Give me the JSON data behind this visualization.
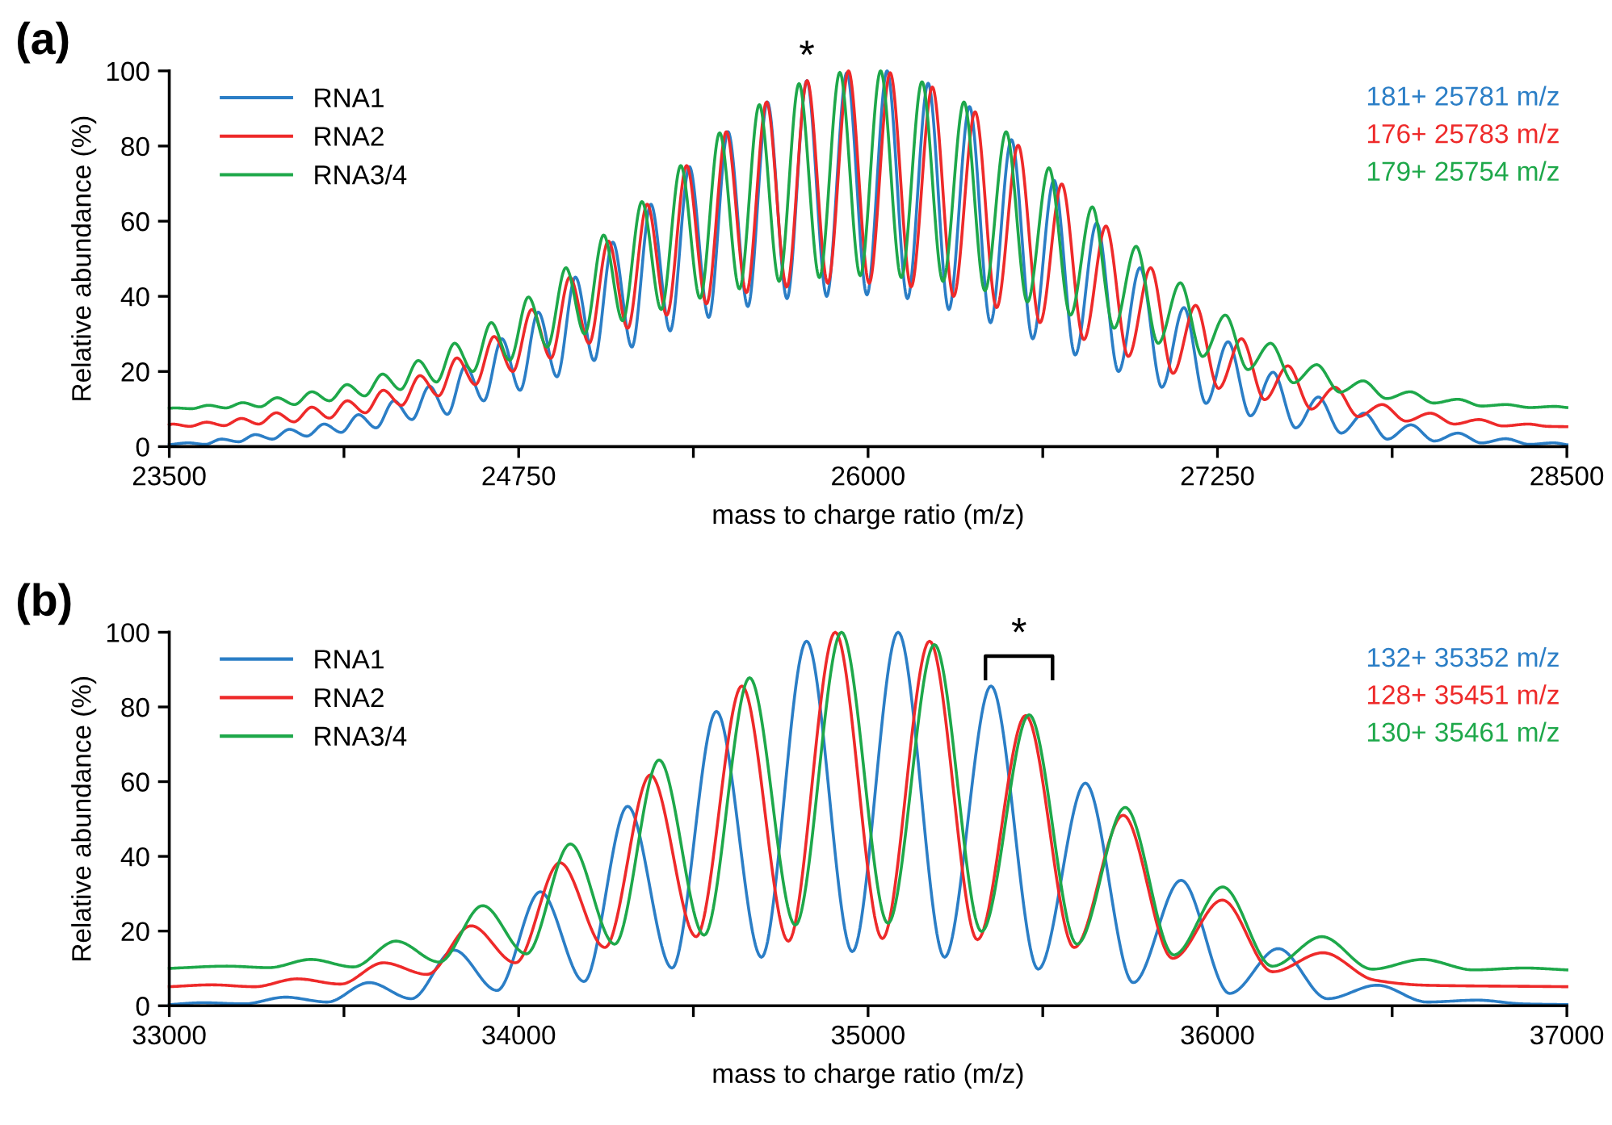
{
  "chart_data": [
    {
      "type": "line",
      "title": "(a)",
      "xlabel": "mass to charge ratio (m/z)",
      "ylabel": "Relative abundance (%)",
      "xlim": [
        23500,
        28500
      ],
      "xticks": [
        23500,
        {
          "value": 24125,
          "label": null
        },
        24750,
        {
          "value": 25375,
          "label": null
        },
        26000,
        {
          "value": 26625,
          "label": null
        },
        27250,
        {
          "value": 27875,
          "label": null
        },
        28500
      ],
      "ylim": [
        0,
        100
      ],
      "yticks": [
        0,
        20,
        40,
        60,
        80,
        100
      ],
      "grid": false,
      "legend": "top left",
      "marker": "none",
      "line_style": "solid",
      "series": [
        {
          "name": "RNA1",
          "color": "#2b7ec6",
          "x": [
            23500,
            23568,
            23628,
            23687,
            23748,
            23808,
            23869,
            23930,
            23992,
            24054,
            24115,
            24177,
            24240,
            24304,
            24368,
            24431,
            24495,
            24560,
            24625,
            24690,
            24755,
            24820,
            24887,
            24953,
            25020,
            25087,
            25155,
            25223,
            25292,
            25361,
            25430,
            25499,
            25570,
            25640,
            25710,
            25781,
            25852,
            25924,
            25996,
            26068,
            26141,
            26215,
            26289,
            26363,
            26438,
            26513,
            26589,
            26665,
            26741,
            26818,
            26896,
            26973,
            27051,
            27130,
            27209,
            27288,
            27368,
            27449,
            27530,
            27611,
            27693,
            27775,
            27858,
            27942,
            28026,
            28110,
            28195,
            28281,
            28367,
            28453,
            28500
          ],
          "values": [
            0.5,
            1.0,
            0.6,
            2.0,
            1.3,
            3.2,
            2.0,
            4.6,
            2.8,
            6.0,
            3.8,
            8.5,
            5.0,
            12.2,
            7.2,
            16.1,
            8.6,
            21.5,
            12.2,
            28.7,
            15.0,
            35.8,
            18.6,
            45.1,
            22.9,
            54.4,
            26.5,
            64.5,
            30.8,
            74.5,
            34.4,
            83.8,
            37.3,
            91.7,
            39.4,
            97.4,
            40.0,
            99.5,
            40.4,
            100,
            39.4,
            96.7,
            36.5,
            90.5,
            33.0,
            81.7,
            28.7,
            70.9,
            24.4,
            59.5,
            20.0,
            47.6,
            15.8,
            37.0,
            11.5,
            27.9,
            8.2,
            19.8,
            5.0,
            13.2,
            3.6,
            8.9,
            2.0,
            5.8,
            1.5,
            3.6,
            1.0,
            2.1,
            0.6,
            1.0,
            0.5
          ]
        },
        {
          "name": "RNA2",
          "color": "#ee2a2a",
          "x": [
            23500,
            23512,
            23573,
            23634,
            23696,
            23758,
            23820,
            23883,
            23946,
            24010,
            24073,
            24137,
            24201,
            24266,
            24331,
            24397,
            24463,
            24529,
            24595,
            24662,
            24729,
            24797,
            24865,
            24933,
            25002,
            25071,
            25140,
            25210,
            25280,
            25351,
            25422,
            25493,
            25565,
            25637,
            25709,
            25782,
            25856,
            25930,
            26004,
            26079,
            26154,
            26230,
            26306,
            26383,
            26460,
            26537,
            26615,
            26693,
            26772,
            26851,
            26931,
            27011,
            27091,
            27172,
            27254,
            27336,
            27419,
            27502,
            27586,
            27670,
            27754,
            27839,
            27925,
            28011,
            28098,
            28185,
            28273,
            28361,
            28430,
            28500
          ],
          "values": [
            5.8,
            6.0,
            5.4,
            6.5,
            5.6,
            7.5,
            6.0,
            9.0,
            6.6,
            10.5,
            7.6,
            12.2,
            9.0,
            15.0,
            11.0,
            18.9,
            13.5,
            23.6,
            16.5,
            29.3,
            20.0,
            36.5,
            23.5,
            45.1,
            27.5,
            54.7,
            31.5,
            64.5,
            35.0,
            74.8,
            38.0,
            83.8,
            41.0,
            91.7,
            42.5,
            97.4,
            43.5,
            100,
            43.5,
            99.5,
            42.5,
            95.7,
            40.0,
            89.1,
            37.0,
            80.2,
            33.0,
            69.9,
            28.5,
            58.7,
            24.0,
            47.6,
            19.5,
            37.6,
            15.5,
            28.7,
            12.5,
            21.5,
            10.0,
            15.8,
            8.0,
            11.2,
            6.8,
            8.9,
            6.0,
            7.2,
            5.5,
            6.0,
            5.4,
            5.3
          ]
        },
        {
          "name": "RNA3/4",
          "color": "#1ea84a",
          "x": [
            23500,
            23520,
            23580,
            23641,
            23702,
            23763,
            23824,
            23886,
            23948,
            24010,
            24073,
            24136,
            24199,
            24263,
            24327,
            24391,
            24456,
            24521,
            24586,
            24652,
            24718,
            24785,
            24852,
            24919,
            24986,
            25054,
            25122,
            25191,
            25260,
            25330,
            25399,
            25469,
            25540,
            25611,
            25682,
            25753,
            25826,
            25899,
            25972,
            26045,
            26119,
            26193,
            26268,
            26343,
            26418,
            26494,
            26570,
            26647,
            26724,
            26802,
            26880,
            26959,
            27038,
            27117,
            27197,
            27278,
            27359,
            27440,
            27522,
            27605,
            27688,
            27771,
            27855,
            27939,
            28024,
            28110,
            28196,
            28282,
            28369,
            28457,
            28500
          ],
          "values": [
            10.2,
            10.3,
            10.1,
            11.0,
            10.3,
            11.7,
            10.6,
            13.0,
            11.2,
            14.6,
            12.2,
            16.5,
            13.5,
            19.3,
            15.2,
            22.9,
            17.2,
            27.5,
            20.0,
            33.0,
            23.0,
            39.8,
            26.5,
            47.6,
            30.0,
            56.3,
            33.5,
            65.2,
            36.5,
            74.8,
            39.5,
            83.5,
            42.0,
            91.0,
            44.0,
            96.6,
            45.0,
            99.6,
            45.5,
            100,
            45.0,
            97.1,
            44.0,
            91.7,
            41.5,
            83.8,
            38.5,
            74.2,
            35.0,
            63.8,
            31.5,
            53.3,
            27.5,
            43.6,
            24.0,
            35.0,
            20.5,
            27.5,
            17.0,
            21.8,
            14.5,
            17.5,
            12.8,
            14.6,
            11.6,
            12.6,
            10.8,
            11.2,
            10.4,
            10.7,
            10.4
          ]
        }
      ],
      "annotations": [
        "181+ 25781 m/z",
        "176+ 25783 m/z",
        "179+ 25754 m/z",
        {
          "text": "*",
          "x": 25781,
          "y": 97.4
        }
      ]
    },
    {
      "type": "line",
      "title": "(b)",
      "xlabel": "mass to charge ratio (m/z)",
      "ylabel": "Relative abundance (%)",
      "xlim": [
        33000,
        37000
      ],
      "xticks": [
        33000,
        {
          "value": 33500,
          "label": null
        },
        34000,
        {
          "value": 34500,
          "label": null
        },
        35000,
        {
          "value": 35500,
          "label": null
        },
        36000,
        {
          "value": 36500,
          "label": null
        },
        37000
      ],
      "ylim": [
        0,
        100
      ],
      "yticks": [
        0,
        20,
        40,
        60,
        80,
        100
      ],
      "grid": false,
      "legend": "top left",
      "marker": "none",
      "line_style": "solid",
      "series": [
        {
          "name": "RNA1",
          "color": "#2b7ec6",
          "x": [
            33000,
            33096,
            33214,
            33332,
            33452,
            33572,
            33693,
            33815,
            33938,
            34062,
            34187,
            34312,
            34439,
            34566,
            34695,
            34824,
            34955,
            35086,
            35219,
            35352,
            35487,
            35622,
            35759,
            35896,
            36035,
            36174,
            36315,
            36457,
            36600,
            36744,
            36872,
            37000
          ],
          "values": [
            0.3,
            0.8,
            0.5,
            2.3,
            1.0,
            6.2,
            1.9,
            14.9,
            4.1,
            30.5,
            6.5,
            53.4,
            10.1,
            78.8,
            13.0,
            97.6,
            14.5,
            100,
            13.0,
            85.6,
            9.8,
            59.6,
            6.2,
            33.6,
            3.3,
            15.3,
            1.9,
            5.5,
            1.0,
            1.5,
            0.5,
            0.3
          ]
        },
        {
          "name": "RNA2",
          "color": "#ee2a2a",
          "x": [
            33000,
            33122,
            33244,
            33366,
            33490,
            33613,
            33738,
            33864,
            33991,
            34118,
            34247,
            34377,
            34508,
            34639,
            34772,
            34906,
            35041,
            35176,
            35313,
            35451,
            35590,
            35730,
            35872,
            36014,
            36158,
            36302,
            36448,
            36594,
            36743,
            36892,
            37000
          ],
          "values": [
            5.1,
            5.6,
            5.1,
            7.2,
            5.8,
            11.5,
            8.4,
            21.4,
            11.5,
            38.3,
            15.6,
            61.8,
            18.5,
            85.6,
            17.3,
            100,
            18.0,
            97.6,
            17.7,
            77.7,
            15.6,
            51.0,
            12.7,
            28.3,
            9.1,
            14.2,
            6.9,
            5.5,
            5.3,
            5.2,
            5.1
          ]
        },
        {
          "name": "RNA3/4",
          "color": "#1ea84a",
          "x": [
            33000,
            33165,
            33285,
            33405,
            33527,
            33649,
            33773,
            33897,
            34022,
            34148,
            34275,
            34402,
            34531,
            34661,
            34792,
            34924,
            35057,
            35190,
            35325,
            35461,
            35598,
            35736,
            35875,
            36015,
            36157,
            36299,
            36443,
            36587,
            36733,
            36879,
            37000
          ],
          "values": [
            10.0,
            10.6,
            10.2,
            12.4,
            10.4,
            17.3,
            11.7,
            26.8,
            13.9,
            43.3,
            16.5,
            65.8,
            18.9,
            87.8,
            21.6,
            100,
            22.1,
            96.7,
            19.9,
            77.9,
            16.5,
            53.1,
            13.6,
            31.8,
            10.6,
            18.5,
            9.8,
            12.4,
            9.6,
            10.1,
            9.6
          ]
        }
      ],
      "annotations": [
        "132+ 35352 m/z",
        "128+ 35451 m/z",
        "130+ 35461 m/z",
        {
          "text": "*",
          "x": 35352,
          "y": 85.6
        }
      ]
    }
  ]
}
